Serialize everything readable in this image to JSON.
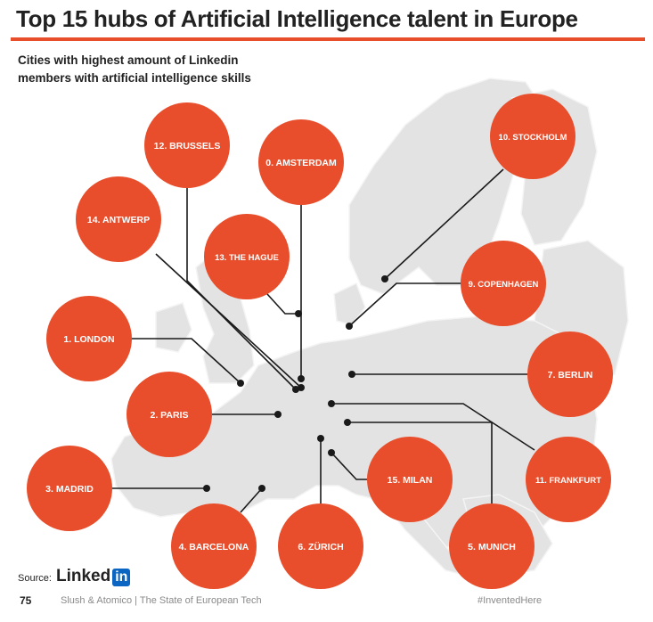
{
  "header": {
    "title": "Top 15 hubs of Artificial Intelligence talent in Europe",
    "subtitle_line1": "Cities with highest amount of Linkedin",
    "subtitle_line2": "members with artificial intelligence skills"
  },
  "colors": {
    "accent": "#e84e2c",
    "map": "#e3e3e3",
    "line": "#1a1a1a",
    "linkedin": "#0a66c2"
  },
  "chart_data": {
    "type": "table",
    "title": "Top 15 hubs of Artificial Intelligence talent in Europe",
    "categories": [
      "London",
      "Paris",
      "Madrid",
      "Barcelona",
      "Munich",
      "Zürich",
      "Berlin",
      "Copenhagen",
      "Stockholm",
      "Amsterdam",
      "Frankfurt",
      "Brussels",
      "The Hague",
      "Antwerp",
      "Milan"
    ],
    "ranks": [
      1,
      2,
      3,
      4,
      5,
      6,
      7,
      9,
      10,
      0,
      11,
      12,
      13,
      14,
      15
    ],
    "labels": [
      "1. LONDON",
      "2. PARIS",
      "3. MADRID",
      "4. BARCELONA",
      "5. MUNICH",
      "6. ZÜRICH",
      "7. BERLIN",
      "9. COPENHAGEN",
      "10. STOCKHOLM",
      "0. AMSTERDAM",
      "11. FRANKFURT",
      "12. BRUSSELS",
      "13. THE HAGUE",
      "14. ANTWERP",
      "15. MILAN"
    ]
  },
  "footer": {
    "source_label": "Source:",
    "linkedin_text": "Linked",
    "linkedin_box": "in",
    "page_number": "75",
    "credit": "Slush & Atomico  |  The State of European Tech",
    "hashtag": "#InventedHere"
  }
}
